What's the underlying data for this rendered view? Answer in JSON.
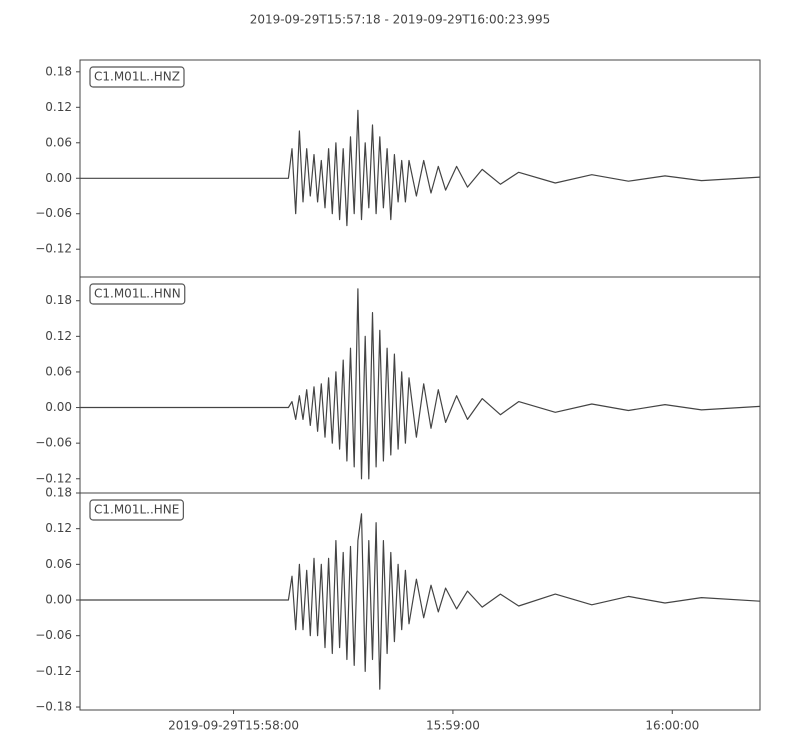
{
  "title": "2019-09-29T15:57:18  -  2019-09-29T16:00:23.995",
  "chart_data": [
    {
      "type": "line",
      "label": "C1.M01L..HNZ",
      "color": "#444444",
      "x": [
        0,
        30,
        57,
        58,
        59,
        60,
        61,
        62,
        63,
        64,
        65,
        66,
        67,
        68,
        69,
        70,
        71,
        72,
        73,
        74,
        75,
        76,
        77,
        78,
        79,
        80,
        81,
        82,
        83,
        84,
        85,
        86,
        87,
        88,
        89,
        90,
        92,
        94,
        96,
        98,
        100,
        103,
        106,
        110,
        115,
        120,
        130,
        140,
        150,
        160,
        170,
        186
      ],
      "values": [
        0,
        0,
        0,
        0.05,
        -0.06,
        0.08,
        -0.04,
        0.05,
        -0.03,
        0.04,
        -0.04,
        0.03,
        -0.05,
        0.05,
        -0.06,
        0.06,
        -0.07,
        0.05,
        -0.08,
        0.07,
        -0.06,
        0.115,
        -0.07,
        0.06,
        -0.05,
        0.09,
        -0.06,
        0.07,
        -0.05,
        0.05,
        -0.07,
        0.04,
        -0.04,
        0.03,
        -0.04,
        0.03,
        -0.03,
        0.03,
        -0.025,
        0.02,
        -0.02,
        0.02,
        -0.015,
        0.015,
        -0.01,
        0.01,
        -0.008,
        0.006,
        -0.005,
        0.004,
        -0.004,
        0.002
      ],
      "xlim": [
        0,
        185.995
      ],
      "ylim": [
        -0.167,
        0.2
      ],
      "yticks": [
        0.18,
        0.12,
        0.06,
        {
          "value": 0,
          "label": "0.00"
        },
        {
          "value": -0.06,
          "label": "−0.06"
        },
        {
          "value": -0.12,
          "label": "−0.12"
        }
      ]
    },
    {
      "type": "line",
      "label": "C1.M01L..HNN",
      "color": "#444444",
      "x": [
        0,
        30,
        57,
        58,
        59,
        60,
        61,
        62,
        63,
        64,
        65,
        66,
        67,
        68,
        69,
        70,
        71,
        72,
        73,
        74,
        75,
        76,
        77,
        78,
        79,
        80,
        81,
        82,
        83,
        84,
        85,
        86,
        87,
        88,
        89,
        90,
        92,
        94,
        96,
        98,
        100,
        103,
        106,
        110,
        115,
        120,
        130,
        140,
        150,
        160,
        170,
        186
      ],
      "values": [
        0,
        0,
        0,
        0.01,
        -0.02,
        0.02,
        -0.02,
        0.03,
        -0.03,
        0.035,
        -0.04,
        0.04,
        -0.05,
        0.05,
        -0.06,
        0.06,
        -0.07,
        0.08,
        -0.09,
        0.1,
        -0.1,
        0.2,
        -0.12,
        0.12,
        -0.12,
        0.16,
        -0.1,
        0.13,
        -0.09,
        0.1,
        -0.08,
        0.09,
        -0.07,
        0.06,
        -0.06,
        0.05,
        -0.05,
        0.04,
        -0.035,
        0.03,
        -0.025,
        0.02,
        -0.02,
        0.015,
        -0.012,
        0.01,
        -0.008,
        0.006,
        -0.005,
        0.005,
        -0.004,
        0.002
      ],
      "xlim": [
        0,
        185.995
      ],
      "ylim": [
        -0.144,
        0.22
      ],
      "yticks": [
        0.18,
        0.12,
        0.06,
        {
          "value": 0,
          "label": "0.00"
        },
        {
          "value": -0.06,
          "label": "−0.06"
        },
        {
          "value": -0.12,
          "label": "−0.12"
        }
      ]
    },
    {
      "type": "line",
      "label": "C1.M01L..HNE",
      "color": "#444444",
      "x": [
        0,
        30,
        57,
        58,
        59,
        60,
        61,
        62,
        63,
        64,
        65,
        66,
        67,
        68,
        69,
        70,
        71,
        72,
        73,
        74,
        75,
        76,
        77,
        78,
        79,
        80,
        81,
        82,
        83,
        84,
        85,
        86,
        87,
        88,
        89,
        90,
        92,
        94,
        96,
        98,
        100,
        103,
        106,
        110,
        115,
        120,
        130,
        140,
        150,
        160,
        170,
        186
      ],
      "values": [
        0,
        0,
        0,
        0.04,
        -0.05,
        0.06,
        -0.05,
        0.05,
        -0.06,
        0.07,
        -0.06,
        0.06,
        -0.08,
        0.07,
        -0.09,
        0.1,
        -0.08,
        0.08,
        -0.1,
        0.09,
        -0.11,
        0.1,
        0.145,
        -0.12,
        0.1,
        -0.1,
        0.13,
        -0.15,
        0.1,
        -0.09,
        0.08,
        -0.07,
        0.06,
        -0.05,
        0.05,
        -0.04,
        0.035,
        -0.03,
        0.025,
        -0.02,
        0.02,
        -0.015,
        0.015,
        -0.012,
        0.01,
        -0.01,
        0.01,
        -0.008,
        0.006,
        -0.005,
        0.004,
        -0.002
      ],
      "xlim": [
        0,
        185.995
      ],
      "ylim": [
        -0.185,
        0.18
      ],
      "yticks": [
        0.18,
        0.12,
        0.06,
        {
          "value": 0,
          "label": "0.00"
        },
        {
          "value": -0.06,
          "label": "−0.06"
        },
        {
          "value": -0.12,
          "label": "−0.12"
        },
        {
          "value": -0.18,
          "label": "−0.18"
        }
      ],
      "xticks": [
        {
          "value": 42,
          "label": "2019-09-29T15:58:00"
        },
        {
          "value": 102,
          "label": "15:59:00"
        },
        {
          "value": 162,
          "label": "16:00:00"
        }
      ]
    }
  ]
}
